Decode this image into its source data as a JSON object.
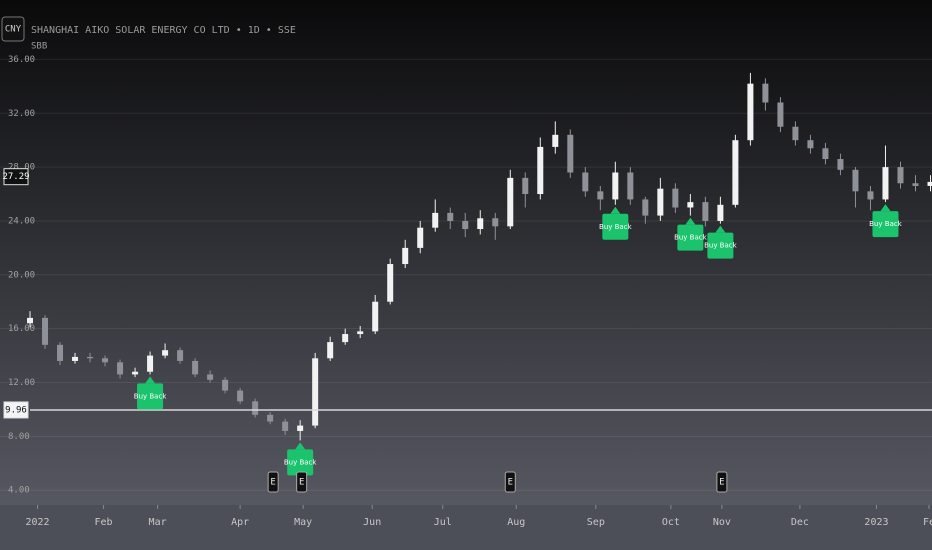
{
  "header": {
    "currency": "CNY",
    "symbol": "SHANGHAI AIKO SOLAR ENERGY CO LTD • 1D • SSE",
    "indicator": "SBB"
  },
  "chart_data": {
    "type": "candlestick",
    "x": [
      0,
      1,
      2,
      3,
      4,
      5,
      6,
      7,
      8,
      9,
      10,
      11,
      12,
      13,
      14,
      15,
      16,
      17,
      18,
      19,
      20,
      21,
      22,
      23,
      24,
      25,
      26,
      27,
      28,
      29,
      30,
      31,
      32,
      33,
      34,
      35,
      36,
      37,
      38,
      39,
      40,
      41,
      42,
      43,
      44,
      45,
      46,
      47,
      48,
      49,
      50,
      51,
      52,
      53,
      54,
      55,
      56,
      57,
      58,
      59,
      60
    ],
    "open": [
      16.4,
      16.8,
      14.8,
      13.6,
      13.9,
      13.8,
      13.5,
      12.6,
      12.8,
      14.0,
      14.4,
      13.6,
      12.6,
      12.2,
      11.4,
      10.6,
      9.6,
      9.1,
      8.4,
      8.8,
      13.8,
      15.0,
      15.6,
      15.8,
      18.0,
      20.8,
      22.0,
      23.5,
      24.6,
      24.0,
      23.4,
      24.2,
      23.6,
      27.2,
      26.0,
      29.5,
      30.4,
      27.6,
      26.2,
      25.6,
      27.6,
      25.6,
      24.4,
      26.4,
      25.0,
      25.4,
      24.0,
      25.2,
      30.0,
      34.2,
      32.8,
      31.0,
      30.0,
      29.4,
      28.6,
      27.8,
      26.2,
      25.6,
      28.0,
      26.8,
      26.6
    ],
    "high": [
      17.3,
      17.0,
      15.0,
      14.2,
      14.2,
      14.0,
      13.7,
      13.1,
      14.3,
      14.9,
      14.6,
      13.8,
      12.9,
      12.4,
      11.6,
      10.8,
      9.8,
      9.3,
      9.2,
      14.2,
      15.4,
      16.0,
      16.2,
      18.5,
      21.2,
      22.6,
      24.0,
      25.6,
      25.0,
      24.6,
      24.8,
      24.6,
      27.8,
      27.6,
      30.2,
      31.4,
      30.8,
      28.0,
      26.6,
      28.4,
      28.0,
      25.8,
      27.2,
      26.8,
      26.0,
      25.8,
      25.8,
      30.4,
      35.0,
      34.6,
      33.2,
      31.4,
      30.4,
      29.8,
      29.0,
      28.0,
      26.6,
      29.6,
      28.4,
      27.4,
      27.4
    ],
    "low": [
      16.1,
      14.5,
      13.3,
      13.4,
      13.5,
      13.2,
      12.3,
      12.4,
      12.6,
      13.8,
      13.4,
      12.4,
      12.0,
      11.2,
      10.4,
      9.4,
      8.9,
      8.1,
      7.7,
      8.6,
      13.6,
      14.8,
      15.3,
      15.6,
      17.8,
      20.5,
      21.6,
      23.2,
      23.4,
      22.8,
      23.0,
      22.6,
      23.4,
      25.0,
      25.6,
      29.0,
      27.2,
      25.8,
      24.8,
      25.2,
      25.2,
      23.8,
      24.0,
      24.6,
      24.4,
      23.6,
      23.8,
      25.0,
      29.6,
      32.2,
      30.6,
      29.6,
      29.0,
      28.2,
      27.4,
      25.0,
      24.8,
      25.4,
      26.4,
      26.2,
      26.2
    ],
    "close": [
      16.8,
      14.8,
      13.6,
      13.9,
      13.8,
      13.5,
      12.6,
      12.8,
      14.0,
      14.4,
      13.6,
      12.6,
      12.2,
      11.4,
      10.6,
      9.6,
      9.1,
      8.4,
      8.8,
      13.8,
      15.0,
      15.6,
      15.8,
      18.0,
      20.8,
      22.0,
      23.5,
      24.6,
      24.0,
      23.4,
      24.2,
      23.6,
      27.2,
      26.0,
      29.5,
      30.4,
      27.6,
      26.2,
      25.6,
      27.6,
      25.6,
      24.4,
      26.4,
      25.0,
      25.4,
      24.0,
      25.2,
      30.0,
      34.2,
      32.8,
      31.0,
      30.0,
      29.4,
      28.6,
      27.8,
      26.2,
      25.6,
      28.0,
      26.8,
      26.6,
      26.9
    ],
    "up_color": "#f2f2f2",
    "down_color": "#8f9198",
    "xlim": [
      -2,
      60.1
    ],
    "ylim": [
      2.9,
      36.7
    ],
    "yticks": [
      {
        "value": 4,
        "label": "4.00"
      },
      {
        "value": 8,
        "label": "8.00"
      },
      {
        "value": 12,
        "label": "12.00"
      },
      {
        "value": 16,
        "label": "16.00"
      },
      {
        "value": 20,
        "label": "20.00"
      },
      {
        "value": 24,
        "label": "24.00"
      },
      {
        "value": 28,
        "label": "28.00"
      },
      {
        "value": 32,
        "label": "32.00"
      },
      {
        "value": 36,
        "label": "36.00"
      }
    ],
    "xticks": [
      {
        "value": 0.5,
        "label": "2022"
      },
      {
        "value": 4.9,
        "label": "Feb"
      },
      {
        "value": 8.5,
        "label": "Mar"
      },
      {
        "value": 14,
        "label": "Apr"
      },
      {
        "value": 18.2,
        "label": "May"
      },
      {
        "value": 22.8,
        "label": "Jun"
      },
      {
        "value": 27.5,
        "label": "Jul"
      },
      {
        "value": 32.4,
        "label": "Aug"
      },
      {
        "value": 37.7,
        "label": "Sep"
      },
      {
        "value": 42.7,
        "label": "Oct"
      },
      {
        "value": 46.1,
        "label": "Nov"
      },
      {
        "value": 51.3,
        "label": "Dec"
      },
      {
        "value": 56.4,
        "label": "2023"
      },
      {
        "value": 59.9,
        "label": "Fe"
      }
    ],
    "grid": true,
    "annotations": [
      {
        "x": 8,
        "text": "Buy Back"
      },
      {
        "x": 18,
        "text": "Buy Back"
      },
      {
        "x": 39,
        "text": "Buy Back"
      },
      {
        "x": 44,
        "text": "Buy Back"
      },
      {
        "x": 46,
        "text": "Buy Back"
      },
      {
        "x": 57,
        "text": "Buy Back"
      }
    ],
    "annotation_color": "#1bc46c",
    "events": [
      {
        "x": 16.2,
        "text": "E"
      },
      {
        "x": 18.1,
        "text": "E"
      },
      {
        "x": 32,
        "text": "E"
      },
      {
        "x": 46.1,
        "text": "E"
      }
    ],
    "price_lines": [
      {
        "value": 27.29,
        "label": "27.29"
      },
      {
        "value": 9.96,
        "label": "9.96"
      }
    ]
  }
}
